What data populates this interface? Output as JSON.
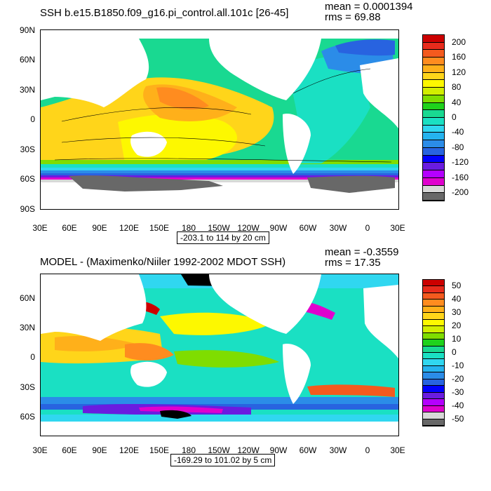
{
  "panel_top": {
    "title": "SSH b.e15.B1850.f09_g16.pi_control.all.101c [26-45]",
    "mean_label": "mean = 0.0001394",
    "rms_label": "rms = 69.88",
    "range_label": "-203.1 to 114 by 20 cm",
    "lat_labels": [
      "90N",
      "60N",
      "30N",
      "0",
      "30S",
      "60S",
      "90S"
    ],
    "lon_labels": [
      "30E",
      "60E",
      "90E",
      "120E",
      "150E",
      "180",
      "150W",
      "120W",
      "90W",
      "60W",
      "30W",
      "0",
      "30E"
    ],
    "colorbar_labels": [
      "200",
      "160",
      "120",
      "80",
      "40",
      "0",
      "-40",
      "-80",
      "-120",
      "-160",
      "-200"
    ],
    "colorbar_colors": [
      "#cc0000",
      "#e82b1c",
      "#f45a1e",
      "#ff8c1f",
      "#ffb01a",
      "#ffd51a",
      "#fdf800",
      "#d2ee00",
      "#7fdd00",
      "#1fd21c",
      "#19d991",
      "#1ae0c3",
      "#30d7f0",
      "#25b3ef",
      "#2b8ce8",
      "#2863e0",
      "#0000ff",
      "#6a1ce0",
      "#b400ff",
      "#e000ce",
      "#d8d8d8",
      "#686868"
    ]
  },
  "panel_bottom": {
    "title": "MODEL - (Maximenko/Niiler 1992-2002 MDOT SSH)",
    "mean_label": "mean = -0.3559",
    "rms_label": "rms = 17.35",
    "range_label": "-169.29 to 101.02 by 5 cm",
    "lat_labels": [
      "60N",
      "30N",
      "0",
      "30S",
      "60S"
    ],
    "lon_labels": [
      "30E",
      "60E",
      "90E",
      "120E",
      "150E",
      "180",
      "150W",
      "120W",
      "90W",
      "60W",
      "30W",
      "0",
      "30E"
    ],
    "colorbar_labels": [
      "50",
      "40",
      "30",
      "20",
      "10",
      "0",
      "-10",
      "-20",
      "-30",
      "-40",
      "-50"
    ],
    "colorbar_colors": [
      "#cc0000",
      "#e82b1c",
      "#f45a1e",
      "#ff8c1f",
      "#ffb01a",
      "#ffd51a",
      "#fdf800",
      "#d2ee00",
      "#7fdd00",
      "#1fd21c",
      "#19d991",
      "#1ae0c3",
      "#30d7f0",
      "#25b3ef",
      "#2b8ce8",
      "#2863e0",
      "#0000ff",
      "#6a1ce0",
      "#b400ff",
      "#e000ce",
      "#d8d8d8",
      "#686868"
    ]
  },
  "colors": {
    "land": "#ffffff",
    "ice_dark": "#686868",
    "ice_light": "#d8d8d8",
    "missing": "#000000"
  }
}
